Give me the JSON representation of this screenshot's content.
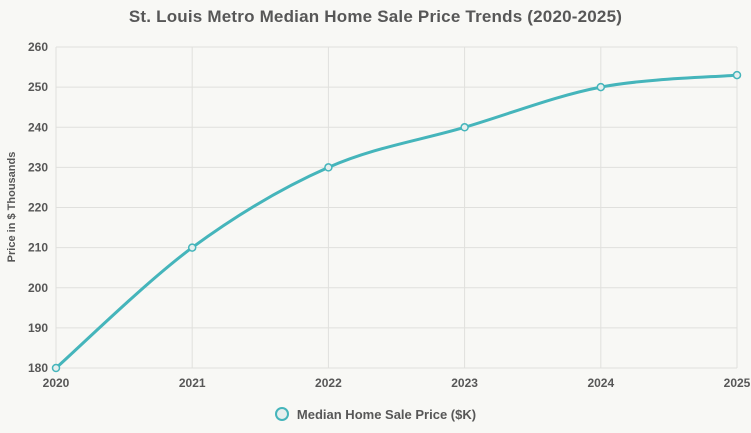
{
  "title": "St. Louis Metro Median Home Sale Price Trends (2020-2025)",
  "legend": {
    "label": "Median Home Sale Price ($K)"
  },
  "colors": {
    "background": "#f8f8f5",
    "line": "#45b5bb",
    "marker_fill": "#e6efee",
    "grid": "#e0e0dd",
    "text": "#575757"
  },
  "chart_data": {
    "type": "line",
    "title": "St. Louis Metro Median Home Sale Price Trends (2020-2025)",
    "x": [
      "2020",
      "2021",
      "2022",
      "2023",
      "2024",
      "2025"
    ],
    "series": [
      {
        "name": "Median Home Sale Price ($K)",
        "values": [
          180,
          210,
          230,
          240,
          250,
          253
        ]
      }
    ],
    "xlabel": "",
    "ylabel": "Price in $ Thousands",
    "ylim": [
      180,
      260
    ],
    "yticks": [
      180,
      190,
      200,
      210,
      220,
      230,
      240,
      250,
      260
    ],
    "grid": true,
    "smooth": true,
    "legend_position": "bottom"
  }
}
